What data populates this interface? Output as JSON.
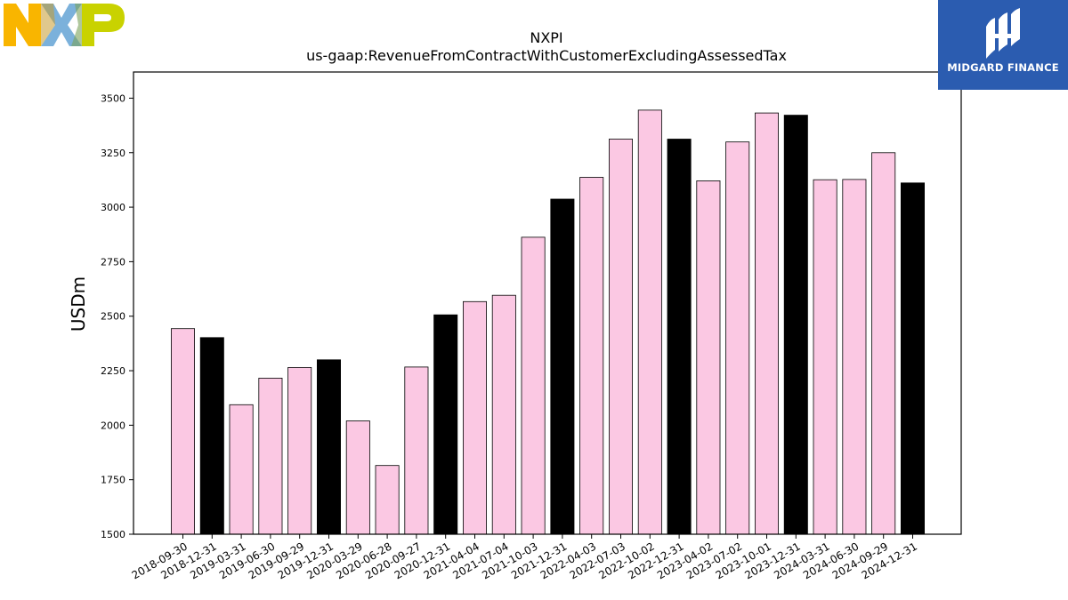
{
  "logos": {
    "left": {
      "name": "NXP",
      "colors": [
        "#f9b500",
        "#7bb1db",
        "#c9d200"
      ]
    },
    "right": {
      "text": "MIDGARD FINANCE",
      "background": "#2b5cb0"
    }
  },
  "chart_data": {
    "type": "bar",
    "title": "NXPI",
    "subtitle": "us-gaap:RevenueFromContractWithCustomerExcludingAssessedTax",
    "xlabel": "",
    "ylabel": "USDm",
    "ylim": [
      1500,
      3620
    ],
    "yticks": [
      1500,
      1750,
      2000,
      2250,
      2500,
      2750,
      3000,
      3250,
      3500
    ],
    "grid": false,
    "colors": {
      "quarter": "#fbc8e3",
      "year_end": "#000000",
      "edge": "#000000"
    },
    "categories": [
      "2018-09-30",
      "2018-12-31",
      "2019-03-31",
      "2019-06-30",
      "2019-09-29",
      "2019-12-31",
      "2020-03-29",
      "2020-06-28",
      "2020-09-27",
      "2020-12-31",
      "2021-04-04",
      "2021-07-04",
      "2021-10-03",
      "2021-12-31",
      "2022-04-03",
      "2022-07-03",
      "2022-10-02",
      "2022-12-31",
      "2023-04-02",
      "2023-07-02",
      "2023-10-01",
      "2023-12-31",
      "2024-03-31",
      "2024-06-30",
      "2024-09-29",
      "2024-12-31"
    ],
    "values": [
      2443,
      2402,
      2094,
      2216,
      2265,
      2300,
      2020,
      1815,
      2267,
      2506,
      2567,
      2596,
      2862,
      3037,
      3137,
      3312,
      3445,
      3312,
      3121,
      3299,
      3432,
      3422,
      3126,
      3127,
      3250,
      3111
    ],
    "year_end": [
      false,
      true,
      false,
      false,
      false,
      true,
      false,
      false,
      false,
      true,
      false,
      false,
      false,
      true,
      false,
      false,
      false,
      true,
      false,
      false,
      false,
      true,
      false,
      false,
      false,
      true
    ]
  }
}
